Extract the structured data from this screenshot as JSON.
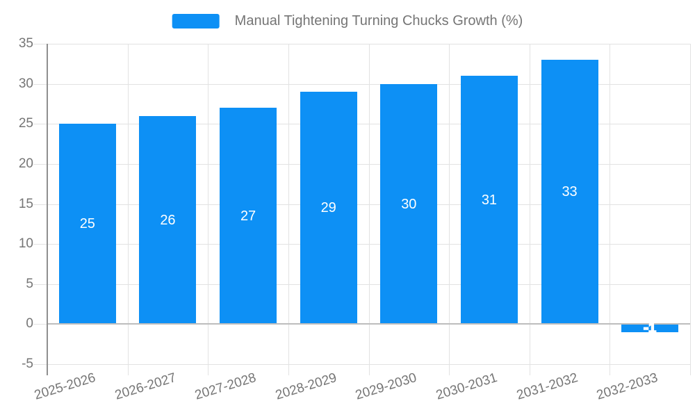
{
  "chart_data": {
    "type": "bar",
    "title": "Manual Tightening Turning Chucks Growth (%)",
    "categories": [
      "2025-2026",
      "2026-2027",
      "2027-2028",
      "2028-2029",
      "2029-2030",
      "2030-2031",
      "2031-2032",
      "2032-2033"
    ],
    "series": [
      {
        "name": "Manual Tightening Turning Chucks Growth (%)",
        "values": [
          25,
          26,
          27,
          29,
          30,
          31,
          33,
          -1
        ]
      }
    ],
    "bar_labels": [
      "25",
      "26",
      "27",
      "29",
      "30",
      "31",
      "33",
      "-1"
    ],
    "xlabel": "",
    "ylabel": "",
    "ylim": [
      -5,
      35
    ],
    "yticks": [
      -5,
      0,
      5,
      10,
      15,
      20,
      25,
      30,
      35
    ],
    "grid": true,
    "legend_position": "top",
    "colors": {
      "bar": "#0d90f5",
      "gridline": "#e2e2e2",
      "zero_line": "#bdbdbd",
      "axis_line": "#8f8f8f",
      "axis_text": "#757575",
      "bar_label_text": "#ffffff",
      "background": "#ffffff"
    }
  }
}
